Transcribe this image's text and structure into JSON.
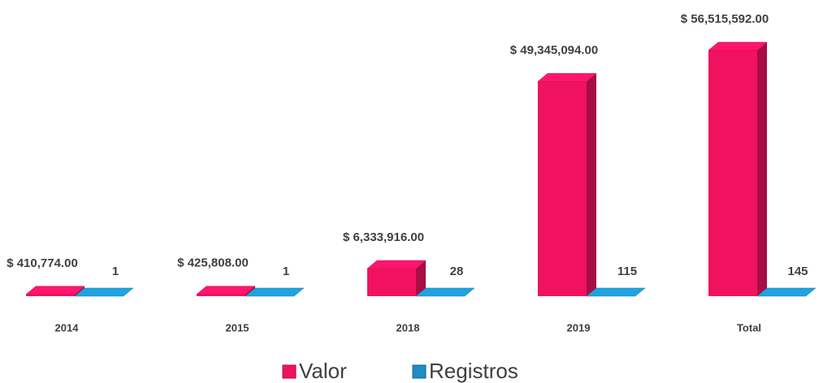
{
  "chart_data": {
    "type": "bar3d",
    "categories": [
      "2014",
      "2015",
      "2018",
      "2019",
      "Total"
    ],
    "series": [
      {
        "name": "Valor",
        "color": "#f0125f",
        "values": [
          410774,
          425808,
          6333916,
          49345094,
          56515592
        ],
        "value_labels": [
          "$ 410,774.00",
          "$ 425,808.00",
          "$ 6,333,916.00",
          "$ 49,345,094.00",
          "$ 56,515,592.00"
        ]
      },
      {
        "name": "Registros",
        "color": "#1b8fc4",
        "values": [
          1,
          1,
          28,
          115,
          145
        ]
      }
    ],
    "legend": "bottom"
  }
}
